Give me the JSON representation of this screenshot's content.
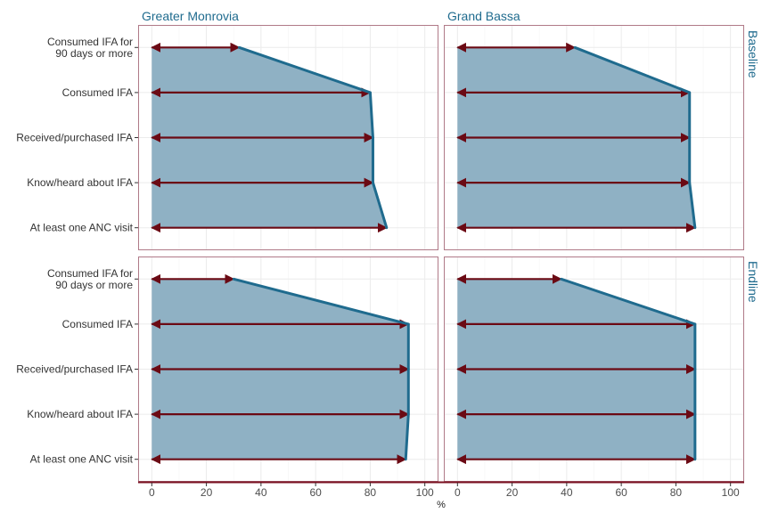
{
  "chart_data": {
    "type": "area",
    "xlabel": "%",
    "xlim": [
      -5,
      105
    ],
    "x_ticks": [
      "0",
      "20",
      "40",
      "60",
      "80",
      "100"
    ],
    "categories": [
      "Consumed IFA for\n90 days or more",
      "Consumed IFA",
      "Received/purchased IFA",
      "Know/heard about IFA",
      "At least one ANC visit"
    ],
    "facet_columns": [
      "Greater Monrovia",
      "Grand Bassa"
    ],
    "facet_rows": [
      "Baseline",
      "Endline"
    ],
    "panels": [
      {
        "row": "Baseline",
        "column": "Greater Monrovia",
        "values": [
          32,
          80,
          81,
          81,
          86
        ]
      },
      {
        "row": "Baseline",
        "column": "Grand Bassa",
        "values": [
          43,
          85,
          85,
          85,
          87
        ]
      },
      {
        "row": "Endline",
        "column": "Greater Monrovia",
        "values": [
          30,
          94,
          94,
          94,
          93
        ]
      },
      {
        "row": "Endline",
        "column": "Grand Bassa",
        "values": [
          38,
          87,
          87,
          87,
          87
        ]
      }
    ],
    "grid": true,
    "colors": {
      "fill": "#8fb1c4",
      "line": "#1f6b8e",
      "arrow": "#6b0a14",
      "panel_border": "#b07a88",
      "strip_text": "#1f6b8e",
      "grid": "#ebebeb"
    }
  }
}
